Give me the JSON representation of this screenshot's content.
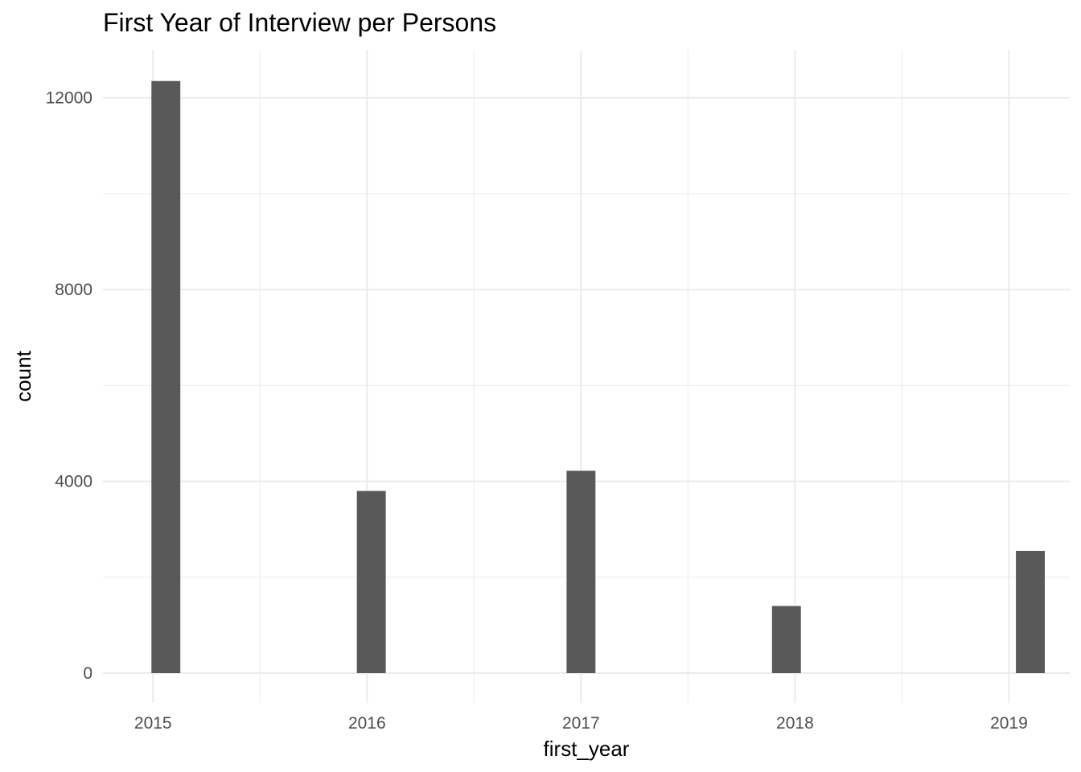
{
  "chart_data": {
    "type": "bar",
    "title": "First Year of Interview per Persons",
    "xlabel": "first_year",
    "ylabel": "count",
    "categories": [
      "2015",
      "2016",
      "2017",
      "2018",
      "2019"
    ],
    "x": [
      2015.06,
      2016.02,
      2017.0,
      2017.96,
      2019.1
    ],
    "values": [
      12350,
      3800,
      4220,
      1400,
      2550
    ],
    "xlim": [
      2014.766,
      2019.284
    ],
    "ylim": [
      -620,
      13000
    ],
    "x_ticks": [
      2015,
      2016,
      2017,
      2018,
      2019
    ],
    "x_tick_labels": [
      "2015",
      "2016",
      "2017",
      "2018",
      "2019"
    ],
    "y_ticks": [
      0,
      4000,
      8000,
      12000
    ],
    "y_tick_labels": [
      "0",
      "4000",
      "8000",
      "12000"
    ],
    "bar_width": 0.135,
    "bar_color": "#595959",
    "grid": true,
    "grid_color": "#ebebeb",
    "background": "#ffffff"
  }
}
